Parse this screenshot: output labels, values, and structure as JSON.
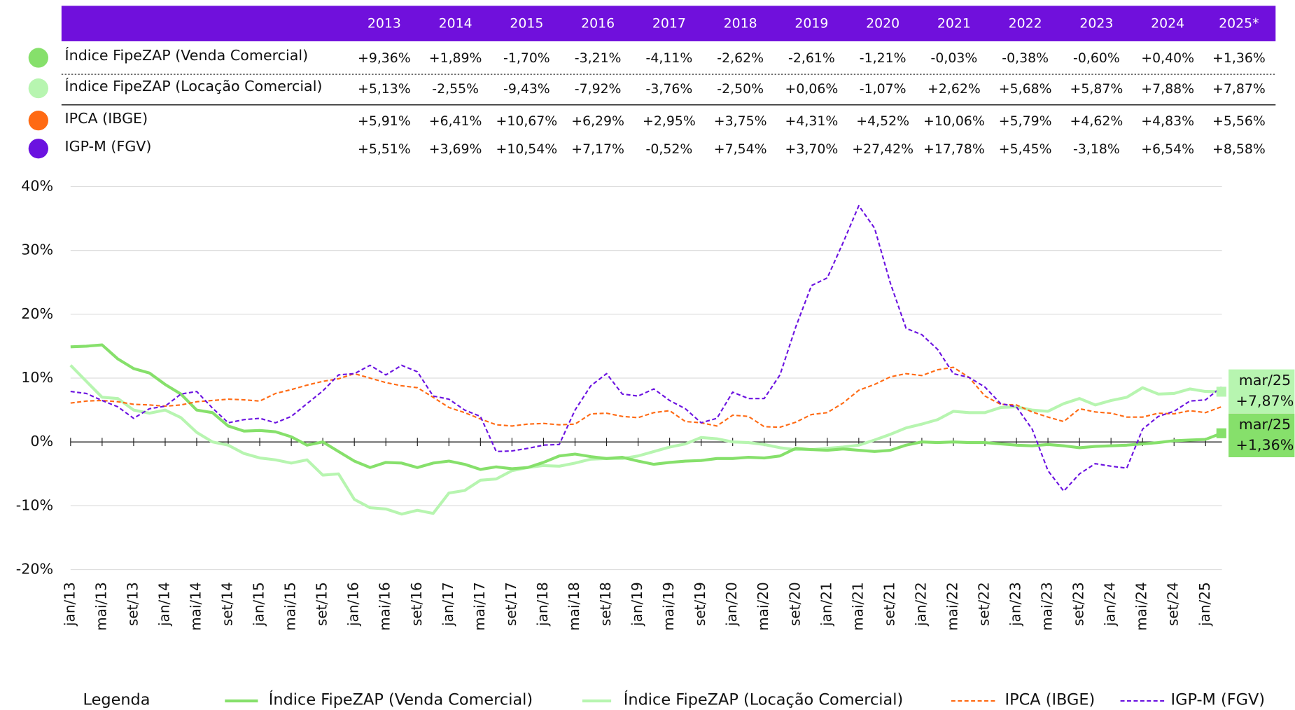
{
  "table": {
    "header": [
      "2013",
      "2014",
      "2015",
      "2016",
      "2017",
      "2018",
      "2019",
      "2020",
      "2021",
      "2022",
      "2023",
      "2024",
      "2025*"
    ],
    "positive_color": "#1f7ec9",
    "negative_color": "#e8262b",
    "rows": [
      {
        "name": "Índice FipeZAP (Venda Comercial)",
        "color": "#86e06b",
        "values": [
          "+9,36%",
          "+1,89%",
          "-1,70%",
          "-3,21%",
          "-4,11%",
          "-2,62%",
          "-2,61%",
          "-1,21%",
          "-0,03%",
          "-0,38%",
          "-0,60%",
          "+0,40%",
          "+1,36%"
        ]
      },
      {
        "name": "Índice FipeZAP (Locação Comercial)",
        "color": "#b7f5b0",
        "values": [
          "+5,13%",
          "-2,55%",
          "-9,43%",
          "-7,92%",
          "-3,76%",
          "-2,50%",
          "+0,06%",
          "-1,07%",
          "+2,62%",
          "+5,68%",
          "+5,87%",
          "+7,88%",
          "+7,87%"
        ]
      },
      {
        "name": "IPCA (IBGE)",
        "color": "#ff6a13",
        "values": [
          "+5,91%",
          "+6,41%",
          "+10,67%",
          "+6,29%",
          "+2,95%",
          "+3,75%",
          "+4,31%",
          "+4,52%",
          "+10,06%",
          "+5,79%",
          "+4,62%",
          "+4,83%",
          "+5,56%"
        ]
      },
      {
        "name": "IGP-M (FGV)",
        "color": "#6b12e0",
        "values": [
          "+5,51%",
          "+3,69%",
          "+10,54%",
          "+7,17%",
          "-0,52%",
          "+7,54%",
          "+3,70%",
          "+27,42%",
          "+17,78%",
          "+5,45%",
          "-3,18%",
          "+6,54%",
          "+8,58%"
        ]
      }
    ]
  },
  "chart_data": {
    "type": "line",
    "legend_title": "Legenda",
    "categories": [
      "jan/13",
      null,
      "mai/13",
      null,
      "set/13",
      null,
      "jan/14",
      null,
      "mai/14",
      null,
      "set/14",
      null,
      "jan/15",
      null,
      "mai/15",
      null,
      "set/15",
      null,
      "jan/16",
      null,
      "mai/16",
      null,
      "set/16",
      null,
      "jan/17",
      null,
      "mai/17",
      null,
      "set/17",
      null,
      "jan/18",
      null,
      "mai/18",
      null,
      "set/18",
      null,
      "jan/19",
      null,
      "mai/19",
      null,
      "set/19",
      null,
      "jan/20",
      null,
      "mai/20",
      null,
      "set/20",
      null,
      "jan/21",
      null,
      "mai/21",
      null,
      "set/21",
      null,
      "jan/22",
      null,
      "mai/22",
      null,
      "set/22",
      null,
      "jan/23",
      null,
      "mai/23",
      null,
      "set/23",
      null,
      "jan/24",
      null,
      "mai/24",
      null,
      "set/24",
      null,
      "jan/25",
      null
    ],
    "ylim": [
      -20,
      40
    ],
    "yticks": [
      {
        "value": -20,
        "label": "-20%"
      },
      {
        "value": -10,
        "label": "-10%"
      },
      {
        "value": 0,
        "label": "0%"
      },
      {
        "value": 10,
        "label": "10%"
      },
      {
        "value": 20,
        "label": "20%"
      },
      {
        "value": 30,
        "label": "30%"
      },
      {
        "value": 40,
        "label": "40%"
      }
    ],
    "grid": true,
    "series": [
      {
        "name": "Índice FipeZAP (Venda Comercial)",
        "color": "#86e06b",
        "dash": "none",
        "width": 3.5,
        "end_label": {
          "category": "mar/25",
          "value": "+1,36%"
        },
        "values": [
          14.9,
          15.0,
          15.2,
          13.0,
          11.5,
          10.8,
          9.0,
          7.5,
          5.0,
          4.6,
          2.5,
          1.7,
          1.8,
          1.6,
          0.8,
          -0.5,
          0.0,
          -1.5,
          -3.0,
          -4.0,
          -3.2,
          -3.3,
          -4.0,
          -3.3,
          -3.0,
          -3.5,
          -4.3,
          -3.9,
          -4.2,
          -4.0,
          -3.2,
          -2.2,
          -1.9,
          -2.3,
          -2.6,
          -2.4,
          -3.0,
          -3.5,
          -3.2,
          -3.0,
          -2.9,
          -2.6,
          -2.6,
          -2.4,
          -2.5,
          -2.2,
          -1.0,
          -1.2,
          -1.3,
          -1.1,
          -1.3,
          -1.5,
          -1.3,
          -0.5,
          0.0,
          -0.1,
          0.0,
          -0.1,
          -0.1,
          -0.3,
          -0.5,
          -0.6,
          -0.4,
          -0.6,
          -0.9,
          -0.7,
          -0.6,
          -0.5,
          -0.3,
          -0.1,
          0.2,
          0.3,
          0.4,
          1.36
        ]
      },
      {
        "name": "Índice FipeZAP (Locação Comercial)",
        "color": "#b7f5b0",
        "dash": "none",
        "width": 3.5,
        "end_label": {
          "category": "mar/25",
          "value": "+7,87%"
        },
        "values": [
          12.0,
          9.5,
          7.0,
          6.8,
          5.0,
          4.5,
          5.0,
          3.8,
          1.5,
          0.0,
          -0.5,
          -1.8,
          -2.5,
          -2.8,
          -3.3,
          -2.8,
          -5.2,
          -5.0,
          -9.0,
          -10.3,
          -10.5,
          -11.3,
          -10.7,
          -11.2,
          -8.0,
          -7.6,
          -6.0,
          -5.8,
          -4.5,
          -4.0,
          -3.7,
          -3.8,
          -3.3,
          -2.7,
          -2.6,
          -2.6,
          -2.2,
          -1.5,
          -0.8,
          -0.3,
          0.7,
          0.5,
          0.0,
          -0.1,
          -0.4,
          -0.9,
          -1.2,
          -1.2,
          -1.0,
          -0.8,
          -0.5,
          0.3,
          1.2,
          2.2,
          2.8,
          3.5,
          4.8,
          4.6,
          4.6,
          5.4,
          5.5,
          5.0,
          4.8,
          6.0,
          6.8,
          5.8,
          6.5,
          7.0,
          8.5,
          7.5,
          7.6,
          8.3,
          7.9,
          7.87
        ]
      },
      {
        "name": "IPCA (IBGE)",
        "color": "#ff6a13",
        "dash": "5,3",
        "width": 1.8,
        "values": [
          6.1,
          6.4,
          6.5,
          6.3,
          5.9,
          5.8,
          5.6,
          5.8,
          6.3,
          6.5,
          6.7,
          6.6,
          6.4,
          7.6,
          8.2,
          8.9,
          9.5,
          9.9,
          10.7,
          10.0,
          9.3,
          8.8,
          8.5,
          7.0,
          5.4,
          4.6,
          3.6,
          2.7,
          2.5,
          2.8,
          2.9,
          2.7,
          2.8,
          4.4,
          4.5,
          4.0,
          3.8,
          4.6,
          4.9,
          3.2,
          3.0,
          2.5,
          4.2,
          4.0,
          2.4,
          2.3,
          3.1,
          4.3,
          4.6,
          6.1,
          8.1,
          9.0,
          10.2,
          10.7,
          10.4,
          11.3,
          11.7,
          10.1,
          7.2,
          5.9,
          5.8,
          4.7,
          3.9,
          3.2,
          5.2,
          4.7,
          4.5,
          3.9,
          3.9,
          4.5,
          4.4,
          4.9,
          4.6,
          5.5
        ]
      },
      {
        "name": "IGP-M (FGV)",
        "color": "#6b12e0",
        "dash": "5,3",
        "width": 1.8,
        "values": [
          7.9,
          7.6,
          6.5,
          5.5,
          3.7,
          5.2,
          5.6,
          7.5,
          7.9,
          5.3,
          3.0,
          3.5,
          3.7,
          3.0,
          4.0,
          6.0,
          8.0,
          10.5,
          10.7,
          12.0,
          10.5,
          12.0,
          11.0,
          7.2,
          6.7,
          5.0,
          4.0,
          -1.5,
          -1.4,
          -1.0,
          -0.5,
          -0.4,
          5.0,
          8.8,
          10.7,
          7.5,
          7.2,
          8.3,
          6.5,
          5.2,
          3.0,
          3.7,
          7.8,
          6.8,
          6.8,
          10.5,
          18.0,
          24.5,
          25.7,
          31.2,
          37.0,
          33.5,
          24.9,
          17.8,
          16.8,
          14.5,
          10.7,
          10.1,
          8.6,
          6.0,
          5.5,
          2.0,
          -4.5,
          -7.7,
          -5.0,
          -3.4,
          -3.8,
          -4.1,
          2.0,
          4.0,
          4.8,
          6.4,
          6.6,
          8.6
        ]
      }
    ]
  }
}
